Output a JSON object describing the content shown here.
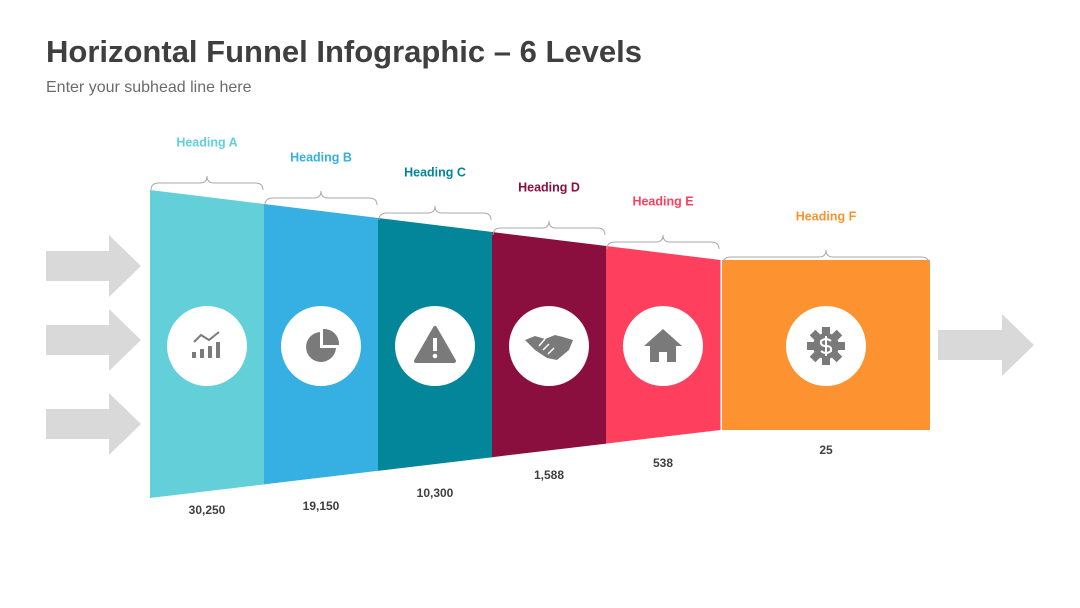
{
  "header": {
    "title": "Horizontal Funnel Infographic – 6 Levels",
    "subtitle": "Enter your subhead line here"
  },
  "levels": [
    {
      "heading": "Heading A",
      "value": "30,250",
      "color": "#62cfd9"
    },
    {
      "heading": "Heading B",
      "value": "19,150",
      "color": "#36b0e2"
    },
    {
      "heading": "Heading C",
      "value": "10,300",
      "color": "#03859a"
    },
    {
      "heading": "Heading D",
      "value": "1,588",
      "color": "#8b0f3e"
    },
    {
      "heading": "Heading E",
      "value": "538",
      "color": "#fe405e"
    },
    {
      "heading": "Heading F",
      "value": "25",
      "color": "#fd9330"
    }
  ]
}
